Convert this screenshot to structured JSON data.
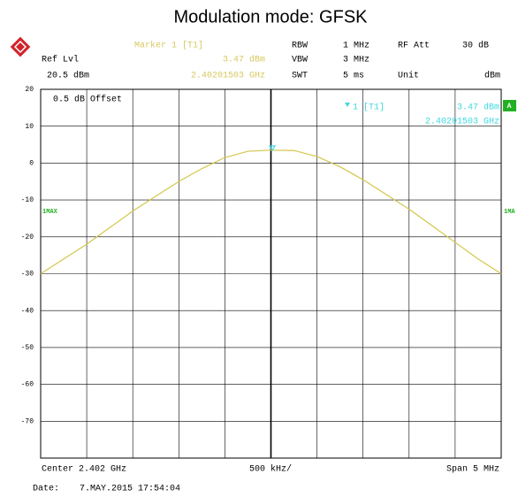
{
  "chart_data": {
    "type": "line",
    "title": "Modulation mode: GFSK",
    "header": {
      "ref_lvl_label": "Ref Lvl",
      "ref_lvl": "20.5 dBm",
      "rbw_label": "RBW",
      "rbw": "1 MHz",
      "rf_att_label": "RF Att",
      "rf_att": "30 dB",
      "vbw_label": "VBW",
      "vbw": "3 MHz",
      "swt_label": "SWT",
      "swt": "5 ms",
      "unit_label": "Unit",
      "unit": "dBm"
    },
    "marker": {
      "label": "Marker 1 [T1]",
      "short_label": "1 [T1]",
      "x": 2.40201503,
      "x_label": "2.40201503 GHz",
      "y": 3.47,
      "y_label": "3.47 dBm",
      "color": "#3fd8e0"
    },
    "offset_note": "0.5 dB Offset",
    "trace_badge": "A",
    "trace_label_right": "1MA",
    "x": [
      2.3995,
      2.39975,
      2.4,
      2.40025,
      2.4005,
      2.40075,
      2.401,
      2.40125,
      2.4015,
      2.40175,
      2.402,
      2.40225,
      2.4025,
      2.40275,
      2.403,
      2.40325,
      2.4035,
      2.40375,
      2.404,
      2.40425,
      2.4045
    ],
    "series": [
      {
        "name": "1MAX",
        "color": "#d4c64a",
        "values": [
          -30,
          -26,
          -22,
          -17.5,
          -13,
          -9,
          -5,
          -1.5,
          1.5,
          3.2,
          3.5,
          3.4,
          1.8,
          -1,
          -4.5,
          -8.5,
          -12.5,
          -17,
          -21.5,
          -26,
          -30
        ]
      }
    ],
    "xlim": [
      2.3995,
      2.4045
    ],
    "ylim": [
      -80,
      20
    ],
    "yticks": [
      20,
      10,
      0,
      -10,
      -20,
      -30,
      -40,
      -50,
      -60,
      -70
    ],
    "grid": true,
    "footer": {
      "center": "Center 2.402 GHz",
      "per_div": "500 kHz/",
      "span": "Span 5 MHz",
      "date_label": "Date:",
      "date": "7.MAY.2015  17:54:04"
    }
  }
}
